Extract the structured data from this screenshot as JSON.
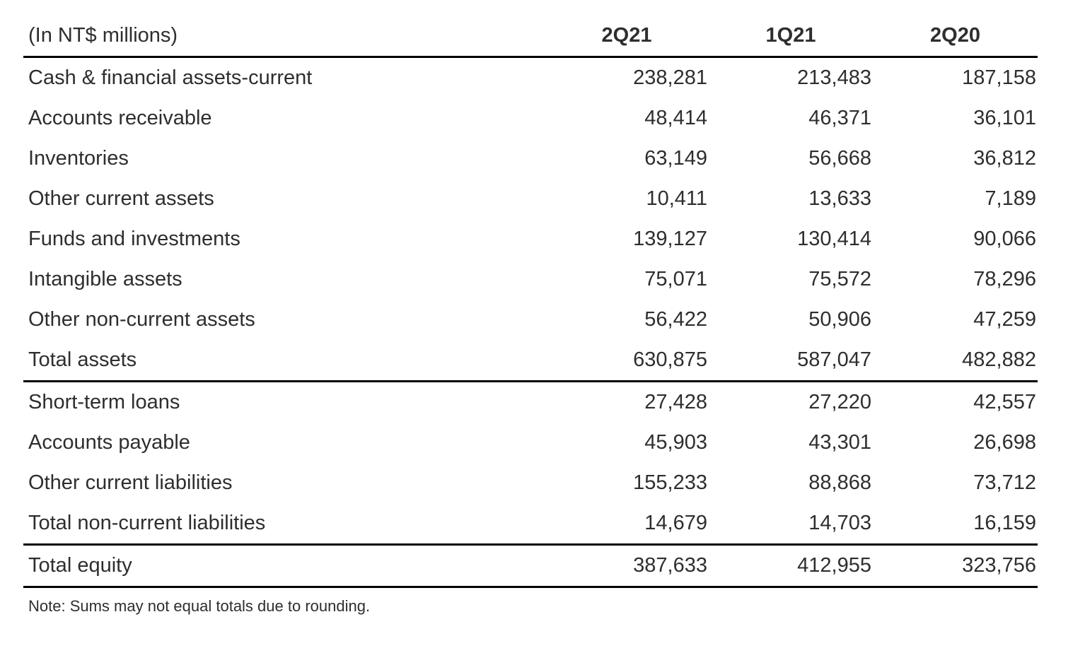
{
  "table": {
    "unit_label": "(In NT$ millions)",
    "columns": [
      "2Q21",
      "1Q21",
      "2Q20"
    ],
    "rows": [
      {
        "label": "Cash & financial assets-current",
        "values": [
          "238,281",
          "213,483",
          "187,158"
        ],
        "is_total": false
      },
      {
        "label": "Accounts receivable",
        "values": [
          "48,414",
          "46,371",
          "36,101"
        ],
        "is_total": false
      },
      {
        "label": "Inventories",
        "values": [
          "63,149",
          "56,668",
          "36,812"
        ],
        "is_total": false
      },
      {
        "label": "Other current assets",
        "values": [
          "10,411",
          "13,633",
          "7,189"
        ],
        "is_total": false
      },
      {
        "label": "Funds and investments",
        "values": [
          "139,127",
          "130,414",
          "90,066"
        ],
        "is_total": false
      },
      {
        "label": "Intangible assets",
        "values": [
          "75,071",
          "75,572",
          "78,296"
        ],
        "is_total": false
      },
      {
        "label": "Other non-current assets",
        "values": [
          "56,422",
          "50,906",
          "47,259"
        ],
        "is_total": false
      },
      {
        "label": "Total assets",
        "values": [
          "630,875",
          "587,047",
          "482,882"
        ],
        "is_total": true
      },
      {
        "label": "Short-term loans",
        "values": [
          "27,428",
          "27,220",
          "42,557"
        ],
        "is_total": false
      },
      {
        "label": "Accounts payable",
        "values": [
          "45,903",
          "43,301",
          "26,698"
        ],
        "is_total": false
      },
      {
        "label": "Other current liabilities",
        "values": [
          "155,233",
          "88,868",
          "73,712"
        ],
        "is_total": false
      },
      {
        "label": "Total non-current liabilities",
        "values": [
          "14,679",
          "14,703",
          "16,159"
        ],
        "is_total": true
      },
      {
        "label": "Total equity",
        "values": [
          "387,633",
          "412,955",
          "323,756"
        ],
        "is_total": true
      }
    ],
    "note": "Note: Sums may not equal totals due to rounding."
  }
}
